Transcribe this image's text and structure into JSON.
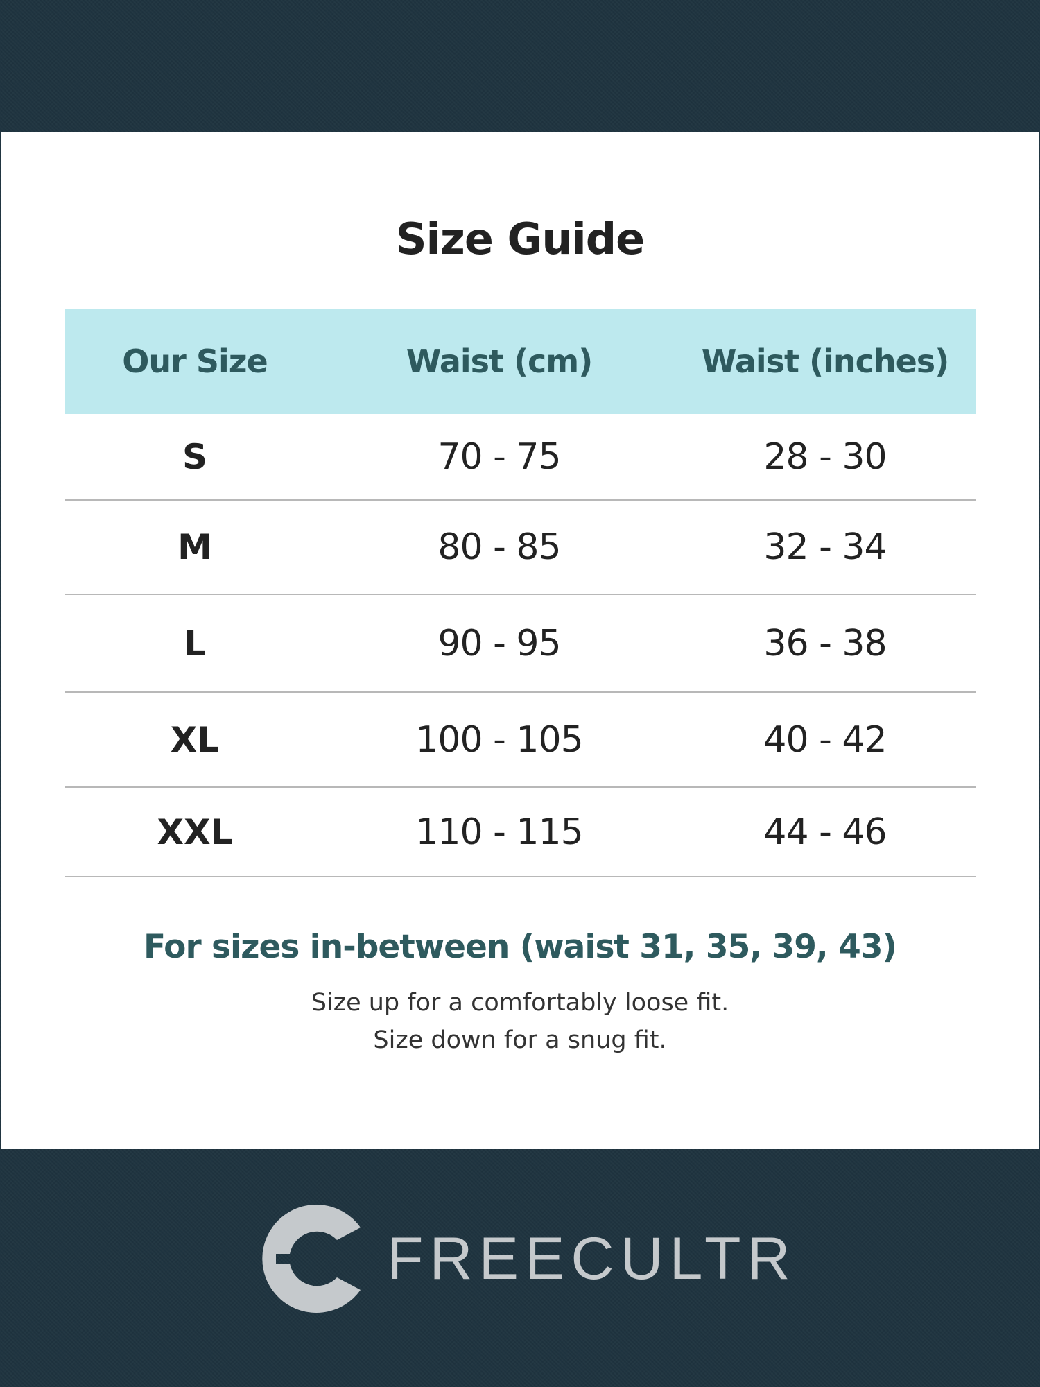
{
  "title": "Size Guide",
  "table": {
    "headers": [
      "Our Size",
      "Waist (cm)",
      "Waist (inches)"
    ],
    "rows": [
      [
        "S",
        "70 - 75",
        "28 - 30"
      ],
      [
        "M",
        "80 - 85",
        "32 - 34"
      ],
      [
        "L",
        "90 - 95",
        "36 - 38"
      ],
      [
        "XL",
        "100 - 105",
        "40 - 42"
      ],
      [
        "XXL",
        "110 - 115",
        "44 - 46"
      ]
    ]
  },
  "note": {
    "heading": "For sizes in-between (waist 31, 35, 39, 43)",
    "line1": "Size up for a comfortably loose fit.",
    "line2": "Size down for a snug fit."
  },
  "brand": {
    "name": "FREECULTR",
    "icon": "freecultr-c-logo-icon"
  },
  "colors": {
    "background": "#1f3440",
    "header_bg": "#bde9ee",
    "accent_text": "#2e5a5e",
    "logo": "#c5c9cc"
  }
}
